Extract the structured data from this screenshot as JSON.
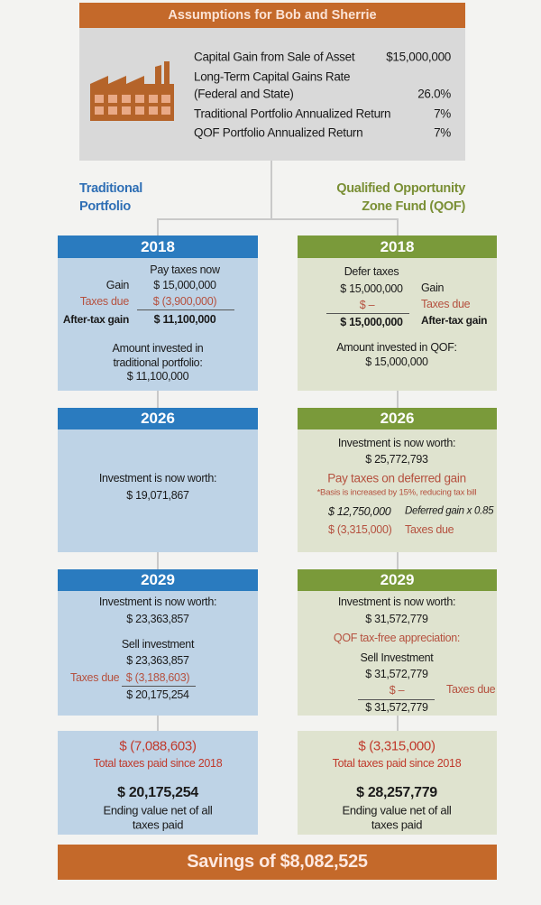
{
  "assumptions": {
    "title": "Assumptions for Bob and Sherrie",
    "icon": "factory-icon",
    "rows": [
      {
        "label": "Capital Gain from Sale of Asset",
        "value": "$15,000,000"
      },
      {
        "label": "Long-Term Capital Gains Rate",
        "label2": "(Federal and State)",
        "value": "26.0%"
      },
      {
        "label": "Traditional Portfolio Annualized Return",
        "value": "7%"
      },
      {
        "label": "QOF Portfolio Annualized Return",
        "value": "7%"
      }
    ]
  },
  "colors": {
    "orange": "#c4692a",
    "blue": "#2a7bbf",
    "green": "#7a9a3a",
    "red": "#c0392b"
  },
  "traditional": {
    "title_line1": "Traditional",
    "title_line2": "Portfolio",
    "y2018": {
      "year": "2018",
      "heading": "Pay taxes now",
      "gain_label": "Gain",
      "gain": "$ 15,000,000",
      "taxes_label": "Taxes due",
      "taxes": "$ (3,900,000)",
      "after_label": "After-tax gain",
      "after": "$ 11,100,000",
      "invested_line1": "Amount invested in",
      "invested_line2": "traditional portfolio:",
      "invested": "$ 11,100,000"
    },
    "y2026": {
      "year": "2026",
      "worth_label": "Investment is now worth:",
      "worth": "$ 19,071,867"
    },
    "y2029": {
      "year": "2029",
      "worth_label": "Investment is now worth:",
      "worth": "$ 23,363,857",
      "sell_label": "Sell investment",
      "sell": "$ 23,363,857",
      "taxes_label": "Taxes due",
      "taxes": "$ (3,188,603)",
      "net": "$ 20,175,254"
    },
    "summary": {
      "total_taxes": "$ (7,088,603)",
      "total_taxes_label": "Total taxes paid since 2018",
      "ending": "$ 20,175,254",
      "ending_line1": "Ending value net of all",
      "ending_line2": "taxes paid"
    }
  },
  "qof": {
    "title_line1": "Qualified Opportunity",
    "title_line2": "Zone Fund (QOF)",
    "y2018": {
      "year": "2018",
      "heading": "Defer taxes",
      "gain_label": "Gain",
      "gain": "$ 15,000,000",
      "taxes_label": "Taxes due",
      "taxes": "$ –",
      "after_label": "After-tax gain",
      "after": "$ 15,000,000",
      "invested_line1": "Amount invested in QOF:",
      "invested": "$ 15,000,000"
    },
    "y2026": {
      "year": "2026",
      "worth_label": "Investment is now worth:",
      "worth": "$ 25,772,793",
      "pay_label": "Pay taxes on deferred gain",
      "footnote": "*Basis is increased by 15%, reducing tax bill",
      "deferred": "$ 12,750,000",
      "deferred_label": "Deferred gain x 0.85",
      "taxes": "$ (3,315,000)",
      "taxes_label": "Taxes due"
    },
    "y2029": {
      "year": "2029",
      "worth_label": "Investment is now worth:",
      "worth": "$ 31,572,779",
      "appreciation_label": "QOF tax-free appreciation:",
      "sell_label": "Sell Investment",
      "sell": "$ 31,572,779",
      "taxes": "$ –",
      "taxes_label": "Taxes due",
      "net": "$ 31,572,779"
    },
    "summary": {
      "total_taxes": "$ (3,315,000)",
      "total_taxes_label": "Total taxes paid since 2018",
      "ending": "$ 28,257,779",
      "ending_line1": "Ending value net of all",
      "ending_line2": "taxes paid"
    }
  },
  "savings": "Savings of $8,082,525"
}
